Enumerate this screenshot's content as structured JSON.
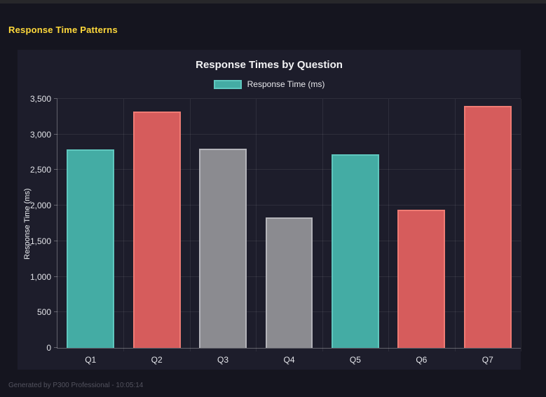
{
  "page": {
    "heading": "Response Time Patterns",
    "footer": "Generated by P300 Professional - 10:05:14"
  },
  "chart_data": {
    "type": "bar",
    "title": "Response Times by Question",
    "legend": {
      "label": "Response Time (ms)",
      "position": "top",
      "swatch_color": "teal"
    },
    "categories": [
      "Q1",
      "Q2",
      "Q3",
      "Q4",
      "Q5",
      "Q6",
      "Q7"
    ],
    "values": [
      2790,
      3320,
      2800,
      1830,
      2720,
      1940,
      3400
    ],
    "bar_colors": [
      "teal",
      "red",
      "gray",
      "gray",
      "teal",
      "red",
      "red"
    ],
    "palette": {
      "teal": {
        "fill": "#44aca4",
        "border": "#5fc7be"
      },
      "red": {
        "fill": "#d65c5c",
        "border": "#ef7b74"
      },
      "gray": {
        "fill": "#8b8b90",
        "border": "#b4b4ba"
      }
    },
    "xlabel": "",
    "ylabel": "Response Time (ms)",
    "ylim": [
      0,
      3500
    ],
    "yticks": [
      {
        "value": 0,
        "label": "0"
      },
      {
        "value": 500,
        "label": "500"
      },
      {
        "value": 1000,
        "label": "1,000"
      },
      {
        "value": 1500,
        "label": "1,500"
      },
      {
        "value": 2000,
        "label": "2,000"
      },
      {
        "value": 2500,
        "label": "2,500"
      },
      {
        "value": 3000,
        "label": "3,000"
      },
      {
        "value": 3500,
        "label": "3,500"
      }
    ],
    "grid": true,
    "bar_width_fraction": 0.72
  }
}
